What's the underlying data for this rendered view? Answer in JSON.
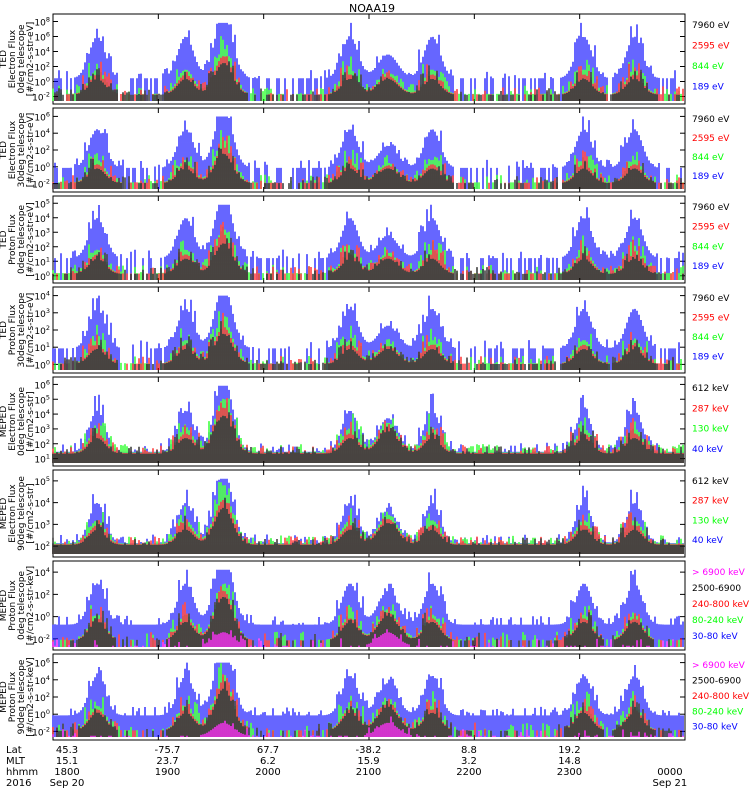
{
  "title": "NOAA19",
  "colors": {
    "blue": "#0000ff",
    "red": "#ff0000",
    "green": "#00ff00",
    "black": "#000000",
    "magenta": "#ff00ff"
  },
  "footer": {
    "row_labels": [
      "Lat",
      "MLT",
      "hhmm",
      "2016"
    ],
    "ticks": [
      {
        "lat": "45.3",
        "mlt": "15.1",
        "hhmm": "1800",
        "date": "Sep 20"
      },
      {
        "lat": "-75.7",
        "mlt": "23.7",
        "hhmm": "1900",
        "date": ""
      },
      {
        "lat": "67.7",
        "mlt": "6.2",
        "hhmm": "2000",
        "date": ""
      },
      {
        "lat": "-38.2",
        "mlt": "15.9",
        "hhmm": "2100",
        "date": ""
      },
      {
        "lat": "8.8",
        "mlt": "3.2",
        "hhmm": "2200",
        "date": ""
      },
      {
        "lat": "19.2",
        "mlt": "14.8",
        "hhmm": "2300",
        "date": ""
      },
      {
        "lat": "",
        "mlt": "",
        "hhmm": "0000",
        "date": "Sep 21"
      }
    ]
  },
  "chart_data": [
    {
      "type": "scatter",
      "ylabel": [
        "TED",
        "Electron Flux",
        "0deg telescope",
        "[#/cm2-s-str-eV]"
      ],
      "yticks": [
        "10^-2",
        "10^0",
        "10^2",
        "10^4",
        "10^6",
        "10^8"
      ],
      "ylim": [
        -2,
        8
      ],
      "x_hours": [
        18,
        24
      ],
      "series": [
        {
          "name": "7960 eV",
          "color": "#000000"
        },
        {
          "name": "2595 eV",
          "color": "#ff0000"
        },
        {
          "name": "844 eV",
          "color": "#00ff00"
        },
        {
          "name": "189 eV",
          "color": "#0000ff"
        }
      ]
    },
    {
      "type": "scatter",
      "ylabel": [
        "TED",
        "Electron Flux",
        "30deg telescope",
        "[#/cm2-s-str-eV]"
      ],
      "yticks": [
        "10^-2",
        "10^0",
        "10^2",
        "10^4",
        "10^6"
      ],
      "ylim": [
        -3,
        6
      ],
      "x_hours": [
        18,
        24
      ],
      "series": [
        {
          "name": "7960 eV",
          "color": "#000000"
        },
        {
          "name": "2595 eV",
          "color": "#ff0000"
        },
        {
          "name": "844 eV",
          "color": "#00ff00"
        },
        {
          "name": "189 eV",
          "color": "#0000ff"
        }
      ]
    },
    {
      "type": "scatter",
      "ylabel": [
        "TED",
        "Proton Flux",
        "0deg telescope",
        "[#/cm2-s-str-eV]"
      ],
      "yticks": [
        "10^0",
        "10^1",
        "10^2",
        "10^3",
        "10^4",
        "10^5"
      ],
      "ylim": [
        0,
        5
      ],
      "x_hours": [
        18,
        24
      ],
      "series": [
        {
          "name": "7960 eV",
          "color": "#000000"
        },
        {
          "name": "2595 eV",
          "color": "#ff0000"
        },
        {
          "name": "844 eV",
          "color": "#00ff00"
        },
        {
          "name": "189 eV",
          "color": "#0000ff"
        }
      ]
    },
    {
      "type": "scatter",
      "ylabel": [
        "TED",
        "Proton Flux",
        "30deg telescope",
        "[#/cm2-s-str-eV]"
      ],
      "yticks": [
        "10^0",
        "10^1",
        "10^2",
        "10^3",
        "10^4"
      ],
      "ylim": [
        0,
        4.7
      ],
      "x_hours": [
        18,
        24
      ],
      "series": [
        {
          "name": "7960 eV",
          "color": "#000000"
        },
        {
          "name": "2595 eV",
          "color": "#ff0000"
        },
        {
          "name": "844 eV",
          "color": "#00ff00"
        },
        {
          "name": "189 eV",
          "color": "#0000ff"
        }
      ]
    },
    {
      "type": "scatter",
      "ylabel": [
        "MEPED",
        "Electron Flux",
        "0deg telescope",
        "[#/cm2-s-str]"
      ],
      "yticks": [
        "10^1",
        "10^2",
        "10^3",
        "10^4",
        "10^5",
        "10^6"
      ],
      "ylim": [
        1,
        6.2
      ],
      "x_hours": [
        18,
        24
      ],
      "series": [
        {
          "name": "612 keV",
          "color": "#000000"
        },
        {
          "name": "287 keV",
          "color": "#ff0000"
        },
        {
          "name": "130 keV",
          "color": "#00ff00"
        },
        {
          "name": "40 keV",
          "color": "#0000ff"
        }
      ]
    },
    {
      "type": "scatter",
      "ylabel": [
        "MEPED",
        "Electron Flux",
        "90deg telescope",
        "[#/cm2-s-str]"
      ],
      "yticks": [
        "10^2",
        "10^3",
        "10^4",
        "10^5"
      ],
      "ylim": [
        1.8,
        5.4
      ],
      "x_hours": [
        18,
        24
      ],
      "series": [
        {
          "name": "612 keV",
          "color": "#000000"
        },
        {
          "name": "287 keV",
          "color": "#ff0000"
        },
        {
          "name": "130 keV",
          "color": "#00ff00"
        },
        {
          "name": "40 keV",
          "color": "#0000ff"
        }
      ]
    },
    {
      "type": "scatter",
      "ylabel": [
        "MEPED",
        "Proton Flux",
        "0deg telescope",
        "[#/cm2-s-str-keV]"
      ],
      "yticks": [
        "10^-2",
        "10^0",
        "10^2",
        "10^4"
      ],
      "ylim": [
        -2.5,
        5.5
      ],
      "x_hours": [
        18,
        24
      ],
      "series": [
        {
          "name": "> 6900 keV",
          "color": "#ff00ff"
        },
        {
          "name": "2500-6900",
          "color": "#000000"
        },
        {
          "name": "240-800 keV",
          "color": "#ff0000"
        },
        {
          "name": "80-240 keV",
          "color": "#00ff00"
        },
        {
          "name": "30-80 keV",
          "color": "#0000ff"
        }
      ]
    },
    {
      "type": "scatter",
      "ylabel": [
        "MEPED",
        "Proton Flux",
        "90deg telescope",
        "[#/cm2-s-str-keV]"
      ],
      "yticks": [
        "10^-2",
        "10^0",
        "10^2",
        "10^4",
        "10^6"
      ],
      "ylim": [
        -2.5,
        6.2
      ],
      "x_hours": [
        18,
        24
      ],
      "series": [
        {
          "name": "> 6900 keV",
          "color": "#ff00ff"
        },
        {
          "name": "2500-6900",
          "color": "#000000"
        },
        {
          "name": "240-800 keV",
          "color": "#ff0000"
        },
        {
          "name": "80-240 keV",
          "color": "#00ff00"
        },
        {
          "name": "30-80 keV",
          "color": "#0000ff"
        }
      ]
    }
  ]
}
